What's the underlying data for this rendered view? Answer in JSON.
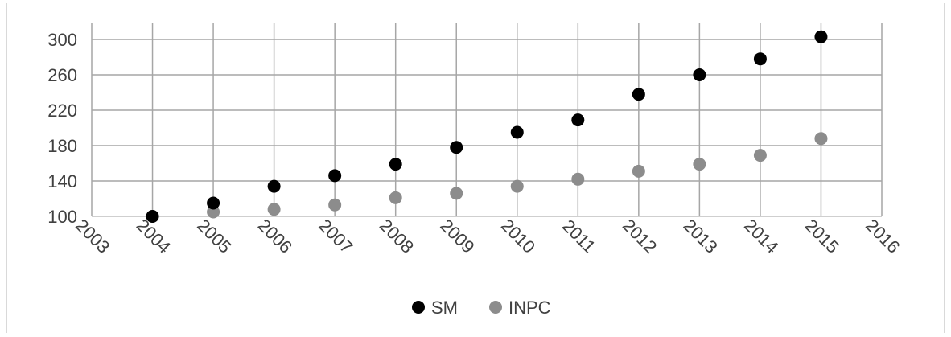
{
  "chart_data": {
    "type": "scatter",
    "title": "",
    "xlabel": "",
    "ylabel": "",
    "xlim": [
      2003,
      2016
    ],
    "ylim": [
      100,
      300
    ],
    "xticks": [
      "2003",
      "2004",
      "2005",
      "2006",
      "2007",
      "2008",
      "2009",
      "2010",
      "2011",
      "2012",
      "2013",
      "2014",
      "2015",
      "2016"
    ],
    "yticks": [
      "100",
      "140",
      "180",
      "220",
      "260",
      "300"
    ],
    "grid": true,
    "legend_position": "bottom",
    "series": [
      {
        "name": "SM",
        "color": "#000000",
        "x": [
          2004,
          2005,
          2006,
          2007,
          2008,
          2009,
          2010,
          2011,
          2012,
          2013,
          2014,
          2015
        ],
        "y": [
          100,
          115,
          134,
          146,
          159,
          178,
          195,
          209,
          238,
          260,
          278,
          303
        ]
      },
      {
        "name": "INPC",
        "color": "#8c8c8c",
        "x": [
          2004,
          2005,
          2006,
          2007,
          2008,
          2009,
          2010,
          2011,
          2012,
          2013,
          2014,
          2015
        ],
        "y": [
          100,
          105,
          108,
          113,
          121,
          126,
          134,
          142,
          151,
          159,
          169,
          188
        ]
      }
    ]
  }
}
